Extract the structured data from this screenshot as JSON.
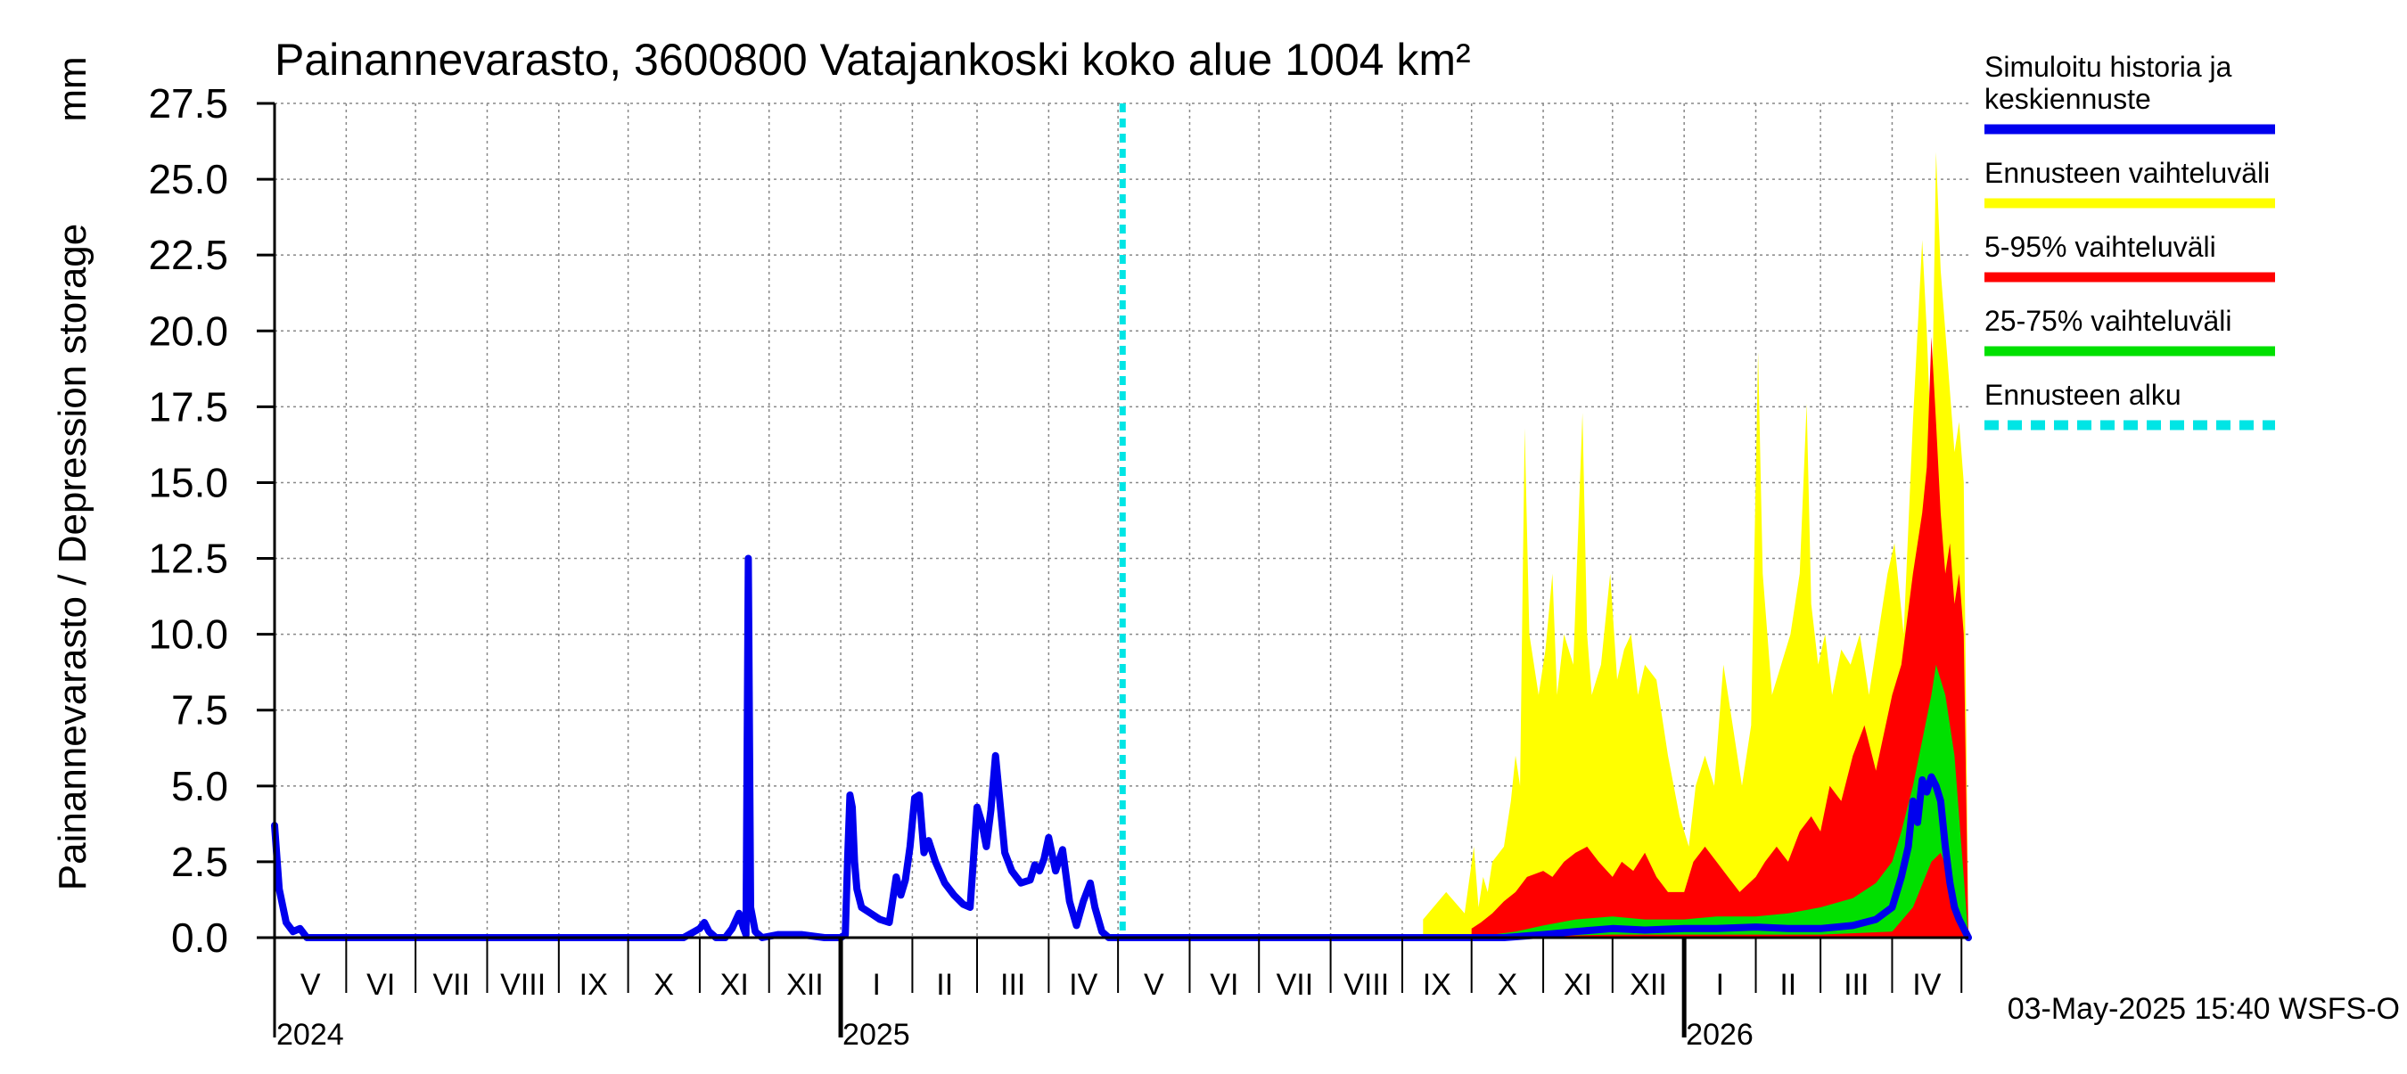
{
  "chart_data": {
    "type": "area",
    "title": "Painannevarasto, 3600800 Vatajankoski koko alue 1004 km²",
    "ylabel": "Painannevarasto / Depression storage",
    "yunit": "mm",
    "ylim": [
      0,
      27.5
    ],
    "yticks": [
      0.0,
      2.5,
      5.0,
      7.5,
      10.0,
      12.5,
      15.0,
      17.5,
      20.0,
      22.5,
      25.0,
      27.5
    ],
    "ytick_labels": [
      "0.0",
      "2.5",
      "5.0",
      "7.5",
      "10.0",
      "12.5",
      "15.0",
      "17.5",
      "20.0",
      "22.5",
      "25.0",
      "27.5"
    ],
    "xlim": [
      "2024-05-01",
      "2026-05-04"
    ],
    "grid": true,
    "month_labels": [
      {
        "label": "V",
        "start": "2024-05-01",
        "end": "2024-06-01"
      },
      {
        "label": "VI",
        "start": "2024-06-01",
        "end": "2024-07-01"
      },
      {
        "label": "VII",
        "start": "2024-07-01",
        "end": "2024-08-01"
      },
      {
        "label": "VIII",
        "start": "2024-08-01",
        "end": "2024-09-01"
      },
      {
        "label": "IX",
        "start": "2024-09-01",
        "end": "2024-10-01"
      },
      {
        "label": "X",
        "start": "2024-10-01",
        "end": "2024-11-01"
      },
      {
        "label": "XI",
        "start": "2024-11-01",
        "end": "2024-12-01"
      },
      {
        "label": "XII",
        "start": "2024-12-01",
        "end": "2025-01-01"
      },
      {
        "label": "I",
        "start": "2025-01-01",
        "end": "2025-02-01"
      },
      {
        "label": "II",
        "start": "2025-02-01",
        "end": "2025-03-01"
      },
      {
        "label": "III",
        "start": "2025-03-01",
        "end": "2025-04-01"
      },
      {
        "label": "IV",
        "start": "2025-04-01",
        "end": "2025-05-01"
      },
      {
        "label": "V",
        "start": "2025-05-01",
        "end": "2025-06-01"
      },
      {
        "label": "VI",
        "start": "2025-06-01",
        "end": "2025-07-01"
      },
      {
        "label": "VII",
        "start": "2025-07-01",
        "end": "2025-08-01"
      },
      {
        "label": "VIII",
        "start": "2025-08-01",
        "end": "2025-09-01"
      },
      {
        "label": "IX",
        "start": "2025-09-01",
        "end": "2025-10-01"
      },
      {
        "label": "X",
        "start": "2025-10-01",
        "end": "2025-11-01"
      },
      {
        "label": "XI",
        "start": "2025-11-01",
        "end": "2025-12-01"
      },
      {
        "label": "XII",
        "start": "2025-12-01",
        "end": "2026-01-01"
      },
      {
        "label": "I",
        "start": "2026-01-01",
        "end": "2026-02-01"
      },
      {
        "label": "II",
        "start": "2026-02-01",
        "end": "2026-03-01"
      },
      {
        "label": "III",
        "start": "2026-03-01",
        "end": "2026-04-01"
      },
      {
        "label": "IV",
        "start": "2026-04-01",
        "end": "2026-05-01"
      }
    ],
    "year_labels": [
      {
        "label": "2024",
        "date": "2024-05-01"
      },
      {
        "label": "2025",
        "date": "2025-01-01"
      },
      {
        "label": "2026",
        "date": "2026-01-01"
      }
    ],
    "forecast_start": "2025-05-03",
    "timestamp": "03-May-2025 15:40 WSFS-O",
    "colors": {
      "history": "#0000ee",
      "range": "#ffff00",
      "p5_95": "#ff0000",
      "p25_75": "#00e000",
      "forecast_start": "#00e5e5",
      "grid": "#888888"
    },
    "legend": [
      {
        "key": "history",
        "label": "Simuloitu historia ja keskiennuste",
        "lines": [
          "Simuloitu historia ja",
          "keskiennuste"
        ],
        "color": "#0000ee",
        "style": "solid"
      },
      {
        "key": "range",
        "label": "Ennusteen vaihteluväli",
        "lines": [
          "Ennusteen vaihteluväli"
        ],
        "color": "#ffff00",
        "style": "solid"
      },
      {
        "key": "p5_95",
        "label": "5-95% vaihteluväli",
        "lines": [
          "5-95% vaihteluväli"
        ],
        "color": "#ff0000",
        "style": "solid"
      },
      {
        "key": "p25_75",
        "label": "25-75% vaihteluväli",
        "lines": [
          "25-75% vaihteluväli"
        ],
        "color": "#00e000",
        "style": "solid"
      },
      {
        "key": "forecast_start",
        "label": "Ennusteen alku",
        "lines": [
          "Ennusteen alku"
        ],
        "color": "#00e5e5",
        "style": "dashed"
      }
    ],
    "series": [
      {
        "name": "Simuloitu historia ja keskiennuste",
        "key": "history",
        "x": [
          "2024-05-01",
          "2024-05-03",
          "2024-05-06",
          "2024-05-09",
          "2024-05-12",
          "2024-05-15",
          "2024-06-01",
          "2024-07-01",
          "2024-08-01",
          "2024-09-01",
          "2024-10-01",
          "2024-10-25",
          "2024-11-01",
          "2024-11-03",
          "2024-11-05",
          "2024-11-08",
          "2024-11-12",
          "2024-11-15",
          "2024-11-18",
          "2024-11-20",
          "2024-11-21",
          "2024-11-22",
          "2024-11-23",
          "2024-11-25",
          "2024-11-28",
          "2024-12-05",
          "2024-12-15",
          "2024-12-25",
          "2025-01-01",
          "2025-01-03",
          "2025-01-04",
          "2025-01-05",
          "2025-01-06",
          "2025-01-07",
          "2025-01-08",
          "2025-01-10",
          "2025-01-14",
          "2025-01-18",
          "2025-01-22",
          "2025-01-25",
          "2025-01-27",
          "2025-01-29",
          "2025-01-31",
          "2025-02-02",
          "2025-02-04",
          "2025-02-06",
          "2025-02-08",
          "2025-02-11",
          "2025-02-15",
          "2025-02-19",
          "2025-02-23",
          "2025-02-26",
          "2025-02-28",
          "2025-03-01",
          "2025-03-03",
          "2025-03-05",
          "2025-03-07",
          "2025-03-09",
          "2025-03-11",
          "2025-03-13",
          "2025-03-16",
          "2025-03-20",
          "2025-03-24",
          "2025-03-26",
          "2025-03-28",
          "2025-03-30",
          "2025-04-01",
          "2025-04-04",
          "2025-04-07",
          "2025-04-10",
          "2025-04-13",
          "2025-04-16",
          "2025-04-19",
          "2025-04-21",
          "2025-04-24",
          "2025-04-27",
          "2025-05-01",
          "2025-05-03",
          "2025-06-01",
          "2025-07-01",
          "2025-08-01",
          "2025-09-01",
          "2025-10-01",
          "2025-10-15",
          "2025-11-01",
          "2025-11-15",
          "2025-12-01",
          "2025-12-15",
          "2026-01-01",
          "2026-01-15",
          "2026-02-01",
          "2026-02-15",
          "2026-03-01",
          "2026-03-15",
          "2026-03-25",
          "2026-04-01",
          "2026-04-05",
          "2026-04-08",
          "2026-04-10",
          "2026-04-12",
          "2026-04-14",
          "2026-04-16",
          "2026-04-18",
          "2026-04-20",
          "2026-04-22",
          "2026-04-24",
          "2026-04-26",
          "2026-04-28",
          "2026-04-30",
          "2026-05-02",
          "2026-05-04"
        ],
        "y": [
          3.7,
          1.6,
          0.5,
          0.2,
          0.3,
          0.0,
          0.0,
          0.0,
          0.0,
          0.0,
          0.0,
          0.0,
          0.3,
          0.5,
          0.2,
          0.0,
          0.0,
          0.3,
          0.8,
          0.3,
          0.1,
          12.5,
          1.0,
          0.2,
          0.0,
          0.1,
          0.1,
          0.0,
          0.0,
          0.1,
          2.6,
          4.7,
          4.3,
          2.5,
          1.6,
          1.0,
          0.8,
          0.6,
          0.5,
          2.0,
          1.4,
          1.9,
          3.0,
          4.6,
          4.7,
          2.8,
          3.2,
          2.5,
          1.8,
          1.4,
          1.1,
          1.0,
          3.2,
          4.3,
          3.8,
          3.0,
          4.2,
          6.0,
          4.4,
          2.8,
          2.2,
          1.8,
          1.9,
          2.4,
          2.2,
          2.6,
          3.3,
          2.2,
          2.9,
          1.2,
          0.4,
          1.2,
          1.8,
          1.0,
          0.2,
          0.0,
          0.0,
          0.0,
          0.0,
          0.0,
          0.0,
          0.0,
          0.0,
          0.0,
          0.1,
          0.2,
          0.3,
          0.25,
          0.3,
          0.3,
          0.35,
          0.3,
          0.3,
          0.4,
          0.6,
          1.0,
          2.0,
          3.0,
          4.5,
          3.8,
          5.2,
          4.8,
          5.3,
          5.0,
          4.5,
          3.0,
          1.8,
          1.0,
          0.6,
          0.3,
          0.0
        ]
      },
      {
        "name": "Ennusteen vaihteluväli",
        "key": "range",
        "x": [
          "2025-09-10",
          "2025-09-20",
          "2025-09-28",
          "2025-10-02",
          "2025-10-04",
          "2025-10-06",
          "2025-10-08",
          "2025-10-10",
          "2025-10-15",
          "2025-10-18",
          "2025-10-20",
          "2025-10-22",
          "2025-10-24",
          "2025-10-26",
          "2025-10-30",
          "2025-11-02",
          "2025-11-05",
          "2025-11-07",
          "2025-11-10",
          "2025-11-14",
          "2025-11-18",
          "2025-11-20",
          "2025-11-22",
          "2025-11-26",
          "2025-11-30",
          "2025-12-03",
          "2025-12-06",
          "2025-12-09",
          "2025-12-12",
          "2025-12-15",
          "2025-12-20",
          "2025-12-25",
          "2025-12-30",
          "2026-01-03",
          "2026-01-06",
          "2026-01-10",
          "2026-01-14",
          "2026-01-18",
          "2026-01-22",
          "2026-01-26",
          "2026-01-30",
          "2026-02-02",
          "2026-02-04",
          "2026-02-06",
          "2026-02-08",
          "2026-02-12",
          "2026-02-16",
          "2026-02-20",
          "2026-02-23",
          "2026-02-25",
          "2026-02-28",
          "2026-03-03",
          "2026-03-06",
          "2026-03-10",
          "2026-03-14",
          "2026-03-18",
          "2026-03-22",
          "2026-03-26",
          "2026-03-30",
          "2026-04-02",
          "2026-04-06",
          "2026-04-10",
          "2026-04-14",
          "2026-04-16",
          "2026-04-18",
          "2026-04-20",
          "2026-04-22",
          "2026-04-24",
          "2026-04-26",
          "2026-04-28",
          "2026-04-30",
          "2026-05-02",
          "2026-05-04"
        ],
        "y": [
          0.6,
          1.5,
          0.8,
          3.0,
          1.0,
          2.0,
          1.5,
          2.5,
          3.0,
          4.5,
          6.0,
          5.0,
          16.8,
          10.0,
          8.0,
          9.5,
          12.0,
          8.0,
          10.0,
          9.0,
          17.3,
          10.0,
          8.0,
          9.0,
          12.0,
          8.5,
          9.5,
          10.0,
          8.0,
          9.0,
          8.5,
          6.0,
          4.0,
          3.0,
          5.0,
          6.0,
          5.0,
          9.0,
          7.0,
          5.0,
          7.0,
          19.3,
          12.0,
          10.0,
          8.0,
          9.0,
          10.0,
          12.0,
          17.6,
          11.0,
          9.0,
          10.0,
          8.0,
          9.5,
          9.0,
          10.0,
          8.0,
          10.0,
          12.0,
          13.0,
          10.0,
          17.0,
          23.0,
          20.0,
          16.0,
          25.9,
          22.0,
          20.0,
          18.0,
          16.0,
          17.0,
          15.0,
          0.0
        ]
      },
      {
        "name": "5-95% vaihteluväli",
        "key": "p5_95",
        "x": [
          "2025-10-01",
          "2025-10-05",
          "2025-10-10",
          "2025-10-15",
          "2025-10-20",
          "2025-10-25",
          "2025-11-01",
          "2025-11-05",
          "2025-11-10",
          "2025-11-15",
          "2025-11-20",
          "2025-11-25",
          "2025-12-01",
          "2025-12-05",
          "2025-12-10",
          "2025-12-15",
          "2025-12-20",
          "2025-12-25",
          "2026-01-01",
          "2026-01-05",
          "2026-01-10",
          "2026-01-15",
          "2026-01-20",
          "2026-01-25",
          "2026-02-01",
          "2026-02-05",
          "2026-02-10",
          "2026-02-15",
          "2026-02-20",
          "2026-02-25",
          "2026-03-01",
          "2026-03-05",
          "2026-03-10",
          "2026-03-15",
          "2026-03-20",
          "2026-03-25",
          "2026-04-01",
          "2026-04-05",
          "2026-04-10",
          "2026-04-14",
          "2026-04-16",
          "2026-04-18",
          "2026-04-20",
          "2026-04-22",
          "2026-04-24",
          "2026-04-26",
          "2026-04-28",
          "2026-04-30",
          "2026-05-02",
          "2026-05-04"
        ],
        "y": [
          0.3,
          0.5,
          0.8,
          1.2,
          1.5,
          2.0,
          2.2,
          2.0,
          2.5,
          2.8,
          3.0,
          2.5,
          2.0,
          2.5,
          2.2,
          2.8,
          2.0,
          1.5,
          1.5,
          2.5,
          3.0,
          2.5,
          2.0,
          1.5,
          2.0,
          2.5,
          3.0,
          2.5,
          3.5,
          4.0,
          3.5,
          5.0,
          4.5,
          6.0,
          7.0,
          5.5,
          8.0,
          9.0,
          12.0,
          14.0,
          15.5,
          19.8,
          17.0,
          14.0,
          12.0,
          13.0,
          11.0,
          12.0,
          10.0,
          0.0
        ]
      },
      {
        "name": "25-75% vaihteluväli",
        "key": "p25_75",
        "x": [
          "2025-10-10",
          "2025-10-20",
          "2025-11-01",
          "2025-11-15",
          "2025-12-01",
          "2025-12-15",
          "2026-01-01",
          "2026-01-15",
          "2026-02-01",
          "2026-02-15",
          "2026-03-01",
          "2026-03-15",
          "2026-03-25",
          "2026-04-01",
          "2026-04-05",
          "2026-04-10",
          "2026-04-14",
          "2026-04-18",
          "2026-04-20",
          "2026-04-22",
          "2026-04-24",
          "2026-04-26",
          "2026-04-28",
          "2026-04-30",
          "2026-05-02",
          "2026-05-04"
        ],
        "y": [
          0.1,
          0.2,
          0.4,
          0.6,
          0.7,
          0.6,
          0.6,
          0.7,
          0.7,
          0.8,
          1.0,
          1.3,
          1.8,
          2.5,
          3.5,
          5.0,
          6.5,
          8.0,
          9.0,
          8.5,
          8.0,
          7.0,
          6.0,
          4.0,
          2.0,
          0.0
        ]
      }
    ],
    "p25_low": {
      "x": [
        "2025-10-10",
        "2025-11-01",
        "2025-12-01",
        "2026-01-01",
        "2026-02-01",
        "2026-03-01",
        "2026-04-01",
        "2026-04-10",
        "2026-04-18",
        "2026-04-22",
        "2026-04-26",
        "2026-04-30",
        "2026-05-04"
      ],
      "y": [
        0.0,
        0.05,
        0.1,
        0.1,
        0.1,
        0.1,
        0.2,
        1.0,
        2.5,
        2.8,
        2.0,
        0.8,
        0.0
      ]
    },
    "forecast_red_base": {
      "x": [
        "2026-04-10",
        "2026-04-14",
        "2026-04-18",
        "2026-04-20",
        "2026-04-22",
        "2026-04-24",
        "2026-04-26",
        "2026-04-28",
        "2026-04-30"
      ],
      "y": [
        0.0,
        0.5,
        1.5,
        2.0,
        2.3,
        2.0,
        1.3,
        0.5,
        0.0
      ]
    }
  }
}
